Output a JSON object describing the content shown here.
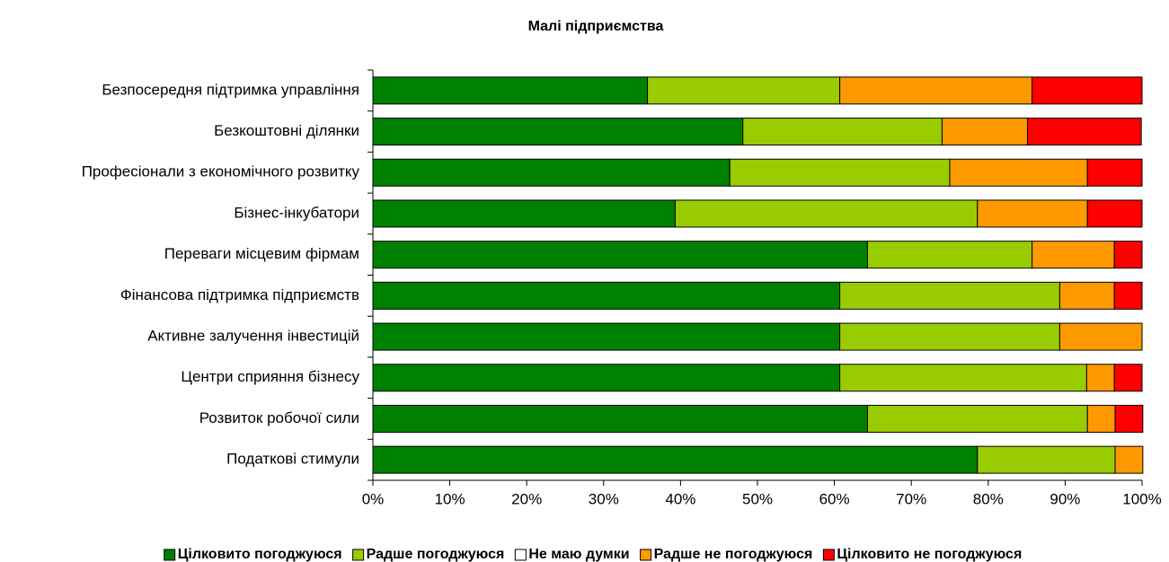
{
  "chart_data": {
    "type": "stacked-bar-horizontal",
    "title": "Малі підприємства",
    "categories": [
      "Безпосередня підтримка управління",
      "Безкоштовні ділянки",
      "Професіонали з економічного розвитку",
      "Бізнес-інкубатори",
      "Переваги місцевим фірмам",
      "Фінансова підтримка підприємств",
      "Активне залучення інвестицій",
      "Центри сприяння бізнесу",
      "Розвиток робочої сили",
      "Податкові стимули"
    ],
    "series": [
      {
        "name": "Цілковито погоджуюся",
        "color": "#008000",
        "values": [
          35.7,
          48.1,
          46.4,
          39.3,
          64.3,
          60.7,
          60.7,
          60.7,
          64.3,
          78.6
        ]
      },
      {
        "name": "Радше погоджуюся",
        "color": "#99cc00",
        "values": [
          25,
          25.9,
          28.6,
          39.3,
          21.4,
          28.6,
          28.6,
          32.1,
          28.6,
          17.9
        ]
      },
      {
        "name": "Не маю думки",
        "color": "#ffffff",
        "values": [
          0,
          0,
          0,
          0,
          0,
          0,
          0,
          0,
          0,
          0
        ]
      },
      {
        "name": "Радше не погоджуюся",
        "color": "#ff9900",
        "values": [
          25,
          11.1,
          17.9,
          14.3,
          10.7,
          7.1,
          10.7,
          3.6,
          3.6,
          3.6
        ]
      },
      {
        "name": "Цілковито не погоджуюся",
        "color": "#ff0000",
        "values": [
          14.3,
          14.8,
          7.1,
          7.1,
          3.6,
          3.6,
          0,
          3.6,
          3.6,
          0
        ]
      }
    ],
    "xlim": [
      0,
      100
    ],
    "xticks": [
      {
        "value": 0,
        "label": "0%"
      },
      {
        "value": 10,
        "label": "10%"
      },
      {
        "value": 20,
        "label": "20%"
      },
      {
        "value": 30,
        "label": "30%"
      },
      {
        "value": 40,
        "label": "40%"
      },
      {
        "value": 50,
        "label": "50%"
      },
      {
        "value": 60,
        "label": "60%"
      },
      {
        "value": 70,
        "label": "70%"
      },
      {
        "value": 80,
        "label": "80%"
      },
      {
        "value": 90,
        "label": "90%"
      },
      {
        "value": 100,
        "label": "100%"
      }
    ],
    "legend": "bottom"
  }
}
